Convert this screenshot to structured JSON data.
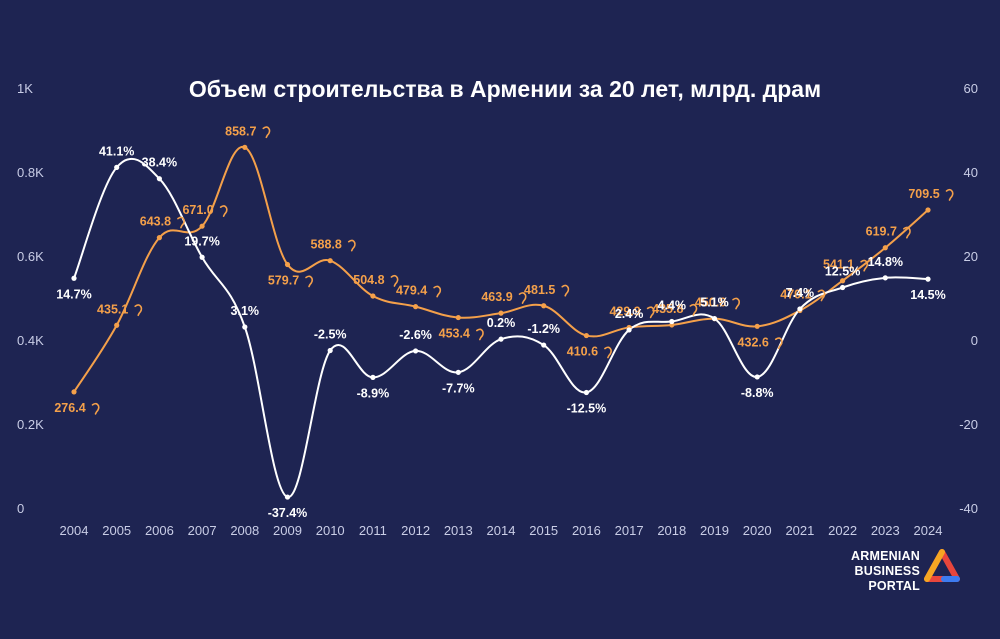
{
  "chart_data": {
    "type": "line",
    "title": "Объем строительства в Армении за 20 лет, млрд. драм",
    "x": [
      "2004",
      "2005",
      "2006",
      "2007",
      "2008",
      "2009",
      "2010",
      "2011",
      "2012",
      "2013",
      "2014",
      "2015",
      "2016",
      "2017",
      "2018",
      "2019",
      "2020",
      "2021",
      "2022",
      "2023",
      "2024"
    ],
    "left_axis": {
      "ticks": [
        0,
        200,
        400,
        600,
        800,
        1000
      ],
      "tick_labels": [
        "0",
        "0.2K",
        "0.4K",
        "0.6K",
        "0.8K",
        "1K"
      ],
      "ylim": [
        0,
        1000
      ]
    },
    "right_axis": {
      "ticks": [
        -40,
        -20,
        0,
        20,
        40,
        60
      ],
      "tick_labels": [
        "-40",
        "-20",
        "0",
        "20",
        "40",
        "60"
      ],
      "ylim": [
        -40,
        60
      ]
    },
    "series": [
      {
        "axis": "left",
        "color": "#f4a04a",
        "values": [
          276.4,
          435.1,
          643.8,
          671.0,
          858.7,
          579.7,
          588.8,
          504.8,
          479.4,
          453.4,
          463.9,
          481.5,
          410.6,
          429.9,
          435.8,
          450.8,
          432.6,
          470.1,
          541.1,
          619.7,
          709.5
        ],
        "labels": [
          "276.4",
          "435.1",
          "643.8",
          "671.0",
          "858.7",
          "579.7",
          "588.8",
          "504.8",
          "479.4",
          "453.4",
          "463.9",
          "481.5",
          "410.6",
          "429.9",
          "435.8",
          "450.8",
          "432.6",
          "470.1",
          "541.1",
          "619.7",
          "709.5"
        ],
        "label_suffix_icon": "dram-sign-icon"
      },
      {
        "axis": "right",
        "color": "#ffffff",
        "values": [
          14.7,
          41.1,
          38.4,
          19.7,
          3.1,
          -37.4,
          -2.5,
          -8.9,
          -2.6,
          -7.7,
          0.2,
          -1.2,
          -12.5,
          2.4,
          4.4,
          5.1,
          -8.8,
          7.4,
          12.5,
          14.8,
          14.5
        ],
        "labels": [
          "14.7%",
          "41.1%",
          "38.4%",
          "19.7%",
          "3.1%",
          "-37.4%",
          "-2.5%",
          "-8.9%",
          "-2.6%",
          "-7.7%",
          "0.2%",
          "-1.2%",
          "-12.5%",
          "2.4%",
          "4.4%",
          "5.1%",
          "-8.8%",
          "7.4%",
          "12.5%",
          "14.8%",
          "14.5%"
        ]
      }
    ],
    "grid": false
  },
  "logo": {
    "line1": "ARMENIAN",
    "line2": "BUSINESS PORTAL",
    "icon": "triangle-logo-icon"
  }
}
